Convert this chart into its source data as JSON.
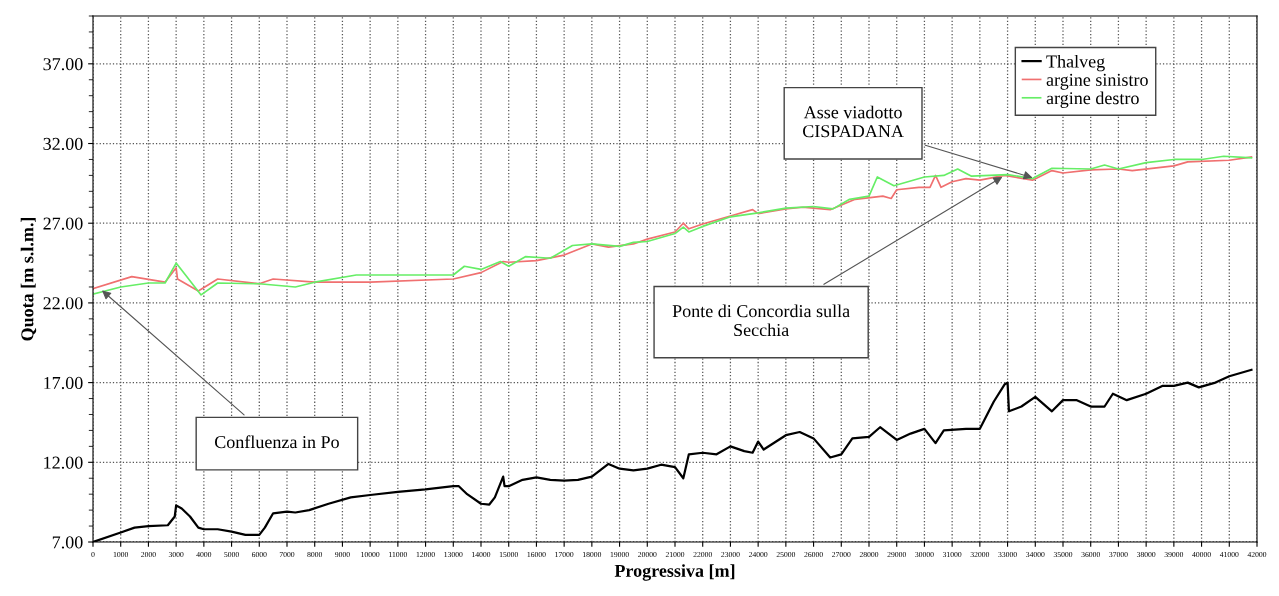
{
  "chart_data": {
    "type": "line",
    "xlabel": "Progressiva [m]",
    "ylabel": "Quota [m s.l.m.]",
    "xlim": [
      0,
      42000
    ],
    "xticks": [
      0,
      1000,
      2000,
      3000,
      4000,
      5000,
      6000,
      7000,
      8000,
      9000,
      10000,
      11000,
      12000,
      13000,
      14000,
      15000,
      16000,
      17000,
      18000,
      19000,
      20000,
      21000,
      22000,
      23000,
      24000,
      25000,
      26000,
      27000,
      28000,
      29000,
      30000,
      31000,
      32000,
      33000,
      34000,
      35000,
      36000,
      37000,
      38000,
      39000,
      40000,
      41000,
      42000
    ],
    "ylim": [
      7,
      40
    ],
    "yticks": [
      {
        "value": 7,
        "label": "7.00"
      },
      {
        "value": 12,
        "label": "12.00"
      },
      {
        "value": 17,
        "label": "17.00"
      },
      {
        "value": 22,
        "label": "22.00"
      },
      {
        "value": 27,
        "label": "27.00"
      },
      {
        "value": 32,
        "label": "32.00"
      },
      {
        "value": 37,
        "label": "37.00"
      }
    ],
    "grid": true,
    "legend": "top right",
    "line_style": "solid",
    "marker": "none",
    "series": [
      {
        "name": "Thalveg",
        "color": "#000000",
        "x": [
          0,
          1000,
          1500,
          2000,
          2700,
          2950,
          3000,
          3200,
          3500,
          3800,
          4000,
          4500,
          5000,
          5500,
          6000,
          6200,
          6500,
          7000,
          7300,
          7800,
          8500,
          9300,
          10000,
          11000,
          12000,
          13000,
          13200,
          13500,
          14000,
          14300,
          14500,
          14800,
          14850,
          15000,
          15500,
          16000,
          16500,
          17000,
          17500,
          18000,
          18600,
          19000,
          19500,
          20000,
          20500,
          21000,
          21300,
          21500,
          22000,
          22500,
          23000,
          23500,
          23800,
          24000,
          24200,
          25000,
          25500,
          26000,
          26600,
          27000,
          27400,
          28000,
          28400,
          29000,
          29500,
          30000,
          30400,
          30700,
          31500,
          32000,
          32500,
          32900,
          33000,
          33050,
          33500,
          34000,
          34600,
          35000,
          35500,
          36000,
          36500,
          36800,
          37300,
          38000,
          38600,
          39000,
          39500,
          39900,
          40500,
          41000,
          41800
        ],
        "values": [
          7.0,
          7.6,
          7.9,
          8.0,
          8.05,
          8.6,
          9.3,
          9.1,
          8.6,
          7.9,
          7.8,
          7.8,
          7.65,
          7.45,
          7.45,
          7.9,
          8.8,
          8.9,
          8.85,
          9.0,
          9.4,
          9.8,
          9.95,
          10.15,
          10.3,
          10.5,
          10.5,
          10.0,
          9.4,
          9.35,
          9.8,
          11.1,
          10.5,
          10.5,
          10.9,
          11.05,
          10.9,
          10.85,
          10.9,
          11.1,
          11.9,
          11.6,
          11.5,
          11.6,
          11.85,
          11.7,
          11.0,
          12.5,
          12.6,
          12.5,
          13.0,
          12.7,
          12.6,
          13.3,
          12.8,
          13.7,
          13.9,
          13.5,
          12.3,
          12.5,
          13.5,
          13.6,
          14.2,
          13.4,
          13.8,
          14.1,
          13.2,
          14.0,
          14.1,
          14.1,
          15.8,
          16.9,
          17.0,
          15.2,
          15.5,
          16.1,
          15.2,
          15.9,
          15.9,
          15.5,
          15.5,
          16.3,
          15.9,
          16.3,
          16.8,
          16.8,
          17.0,
          16.7,
          17.0,
          17.4,
          17.8
        ]
      },
      {
        "name": "argine sinistro",
        "color": "#f07070",
        "x": [
          0,
          1400,
          2600,
          3000,
          3050,
          3800,
          4500,
          6000,
          6500,
          8000,
          10000,
          13000,
          14000,
          14800,
          15000,
          16000,
          17000,
          18000,
          18600,
          19500,
          20000,
          21000,
          21300,
          21500,
          22000,
          23000,
          23800,
          24000,
          25000,
          25600,
          26000,
          26600,
          27500,
          28500,
          28800,
          29000,
          29800,
          30200,
          30400,
          30600,
          31000,
          31500,
          32000,
          32900,
          33900,
          34600,
          35000,
          36000,
          37000,
          37500,
          39000,
          39500,
          41000,
          41800
        ],
        "values": [
          22.9,
          23.65,
          23.3,
          24.2,
          23.5,
          22.75,
          23.5,
          23.2,
          23.5,
          23.3,
          23.3,
          23.5,
          23.9,
          24.6,
          24.55,
          24.65,
          25.0,
          25.7,
          25.5,
          25.7,
          26.0,
          26.45,
          27.0,
          26.65,
          26.95,
          27.45,
          27.85,
          27.6,
          27.9,
          28.0,
          27.95,
          27.85,
          28.5,
          28.7,
          28.55,
          29.1,
          29.25,
          29.25,
          30.0,
          29.25,
          29.6,
          29.8,
          29.7,
          30.0,
          29.7,
          30.3,
          30.15,
          30.35,
          30.4,
          30.3,
          30.6,
          30.85,
          30.95,
          31.15
        ]
      },
      {
        "name": "argine destro",
        "color": "#66ee66",
        "x": [
          0,
          1000,
          2000,
          2600,
          3000,
          3900,
          4500,
          6000,
          7300,
          8000,
          9500,
          13000,
          13400,
          14000,
          14700,
          15000,
          15600,
          16500,
          17300,
          18000,
          19000,
          19500,
          20000,
          21000,
          21300,
          21500,
          22000,
          23000,
          24000,
          25000,
          26000,
          26700,
          27300,
          28000,
          28300,
          28900,
          30000,
          30700,
          31200,
          31700,
          33000,
          33900,
          34600,
          36000,
          36500,
          37000,
          38000,
          39000,
          40000,
          40800,
          41800
        ],
        "values": [
          22.55,
          23.0,
          23.25,
          23.25,
          24.5,
          22.5,
          23.25,
          23.2,
          23.0,
          23.3,
          23.75,
          23.75,
          24.3,
          24.1,
          24.6,
          24.3,
          24.9,
          24.8,
          25.6,
          25.7,
          25.55,
          25.8,
          25.85,
          26.35,
          26.75,
          26.45,
          26.8,
          27.4,
          27.65,
          27.95,
          28.05,
          27.9,
          28.5,
          28.7,
          29.9,
          29.35,
          29.9,
          30.0,
          30.4,
          29.95,
          30.05,
          29.8,
          30.45,
          30.4,
          30.65,
          30.4,
          30.8,
          31.0,
          31.0,
          31.2,
          31.1
        ]
      }
    ],
    "annotations": [
      {
        "text": "Confluenza in Po",
        "x": 250,
        "y": 22.9
      },
      {
        "text": "Asse viadotto\nCISPADANA",
        "x": 34000,
        "y": 29.8
      },
      {
        "text": "Ponte di Concordia sulla\nSecchia",
        "x": 32900,
        "y": 30.0
      }
    ]
  }
}
